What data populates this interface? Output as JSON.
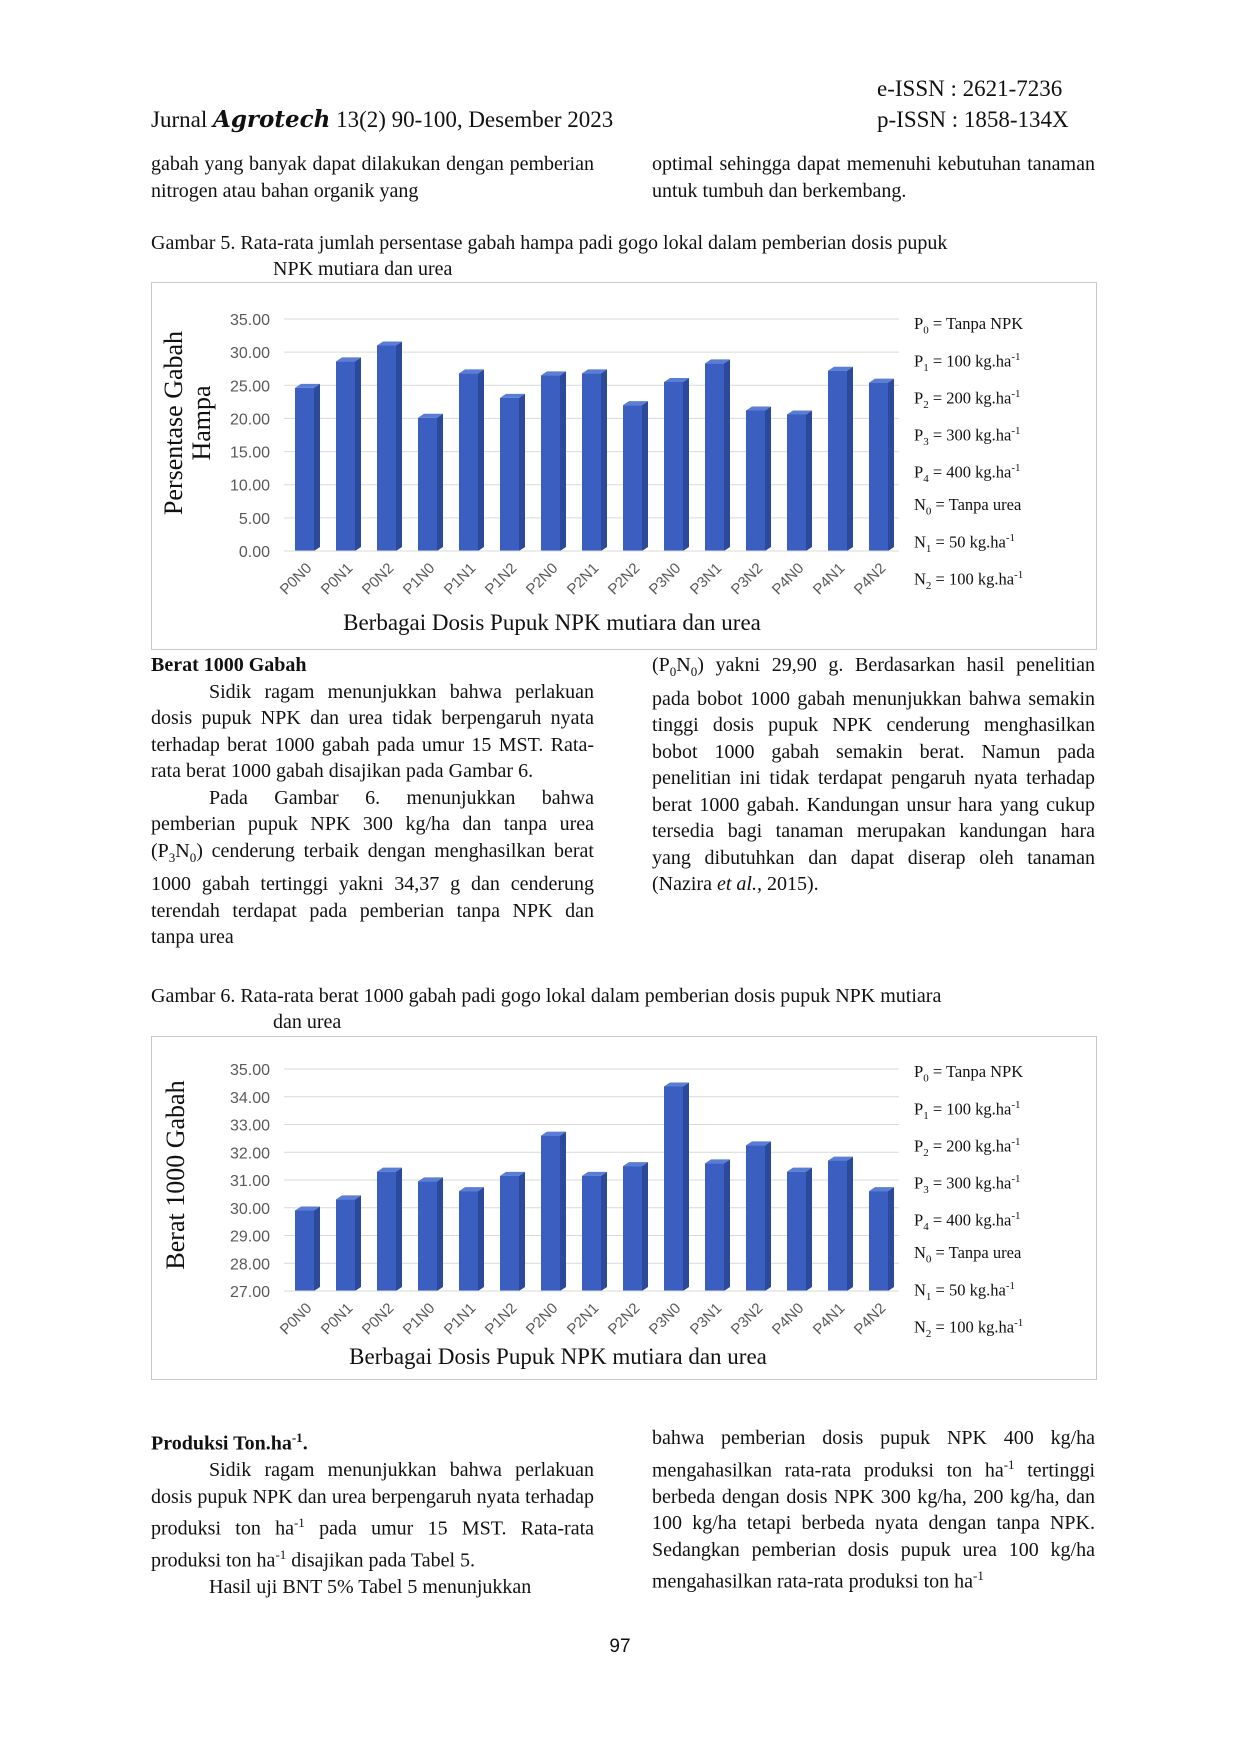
{
  "header": {
    "journal_prefix": "Jurnal ",
    "journal_brand": "Agrotech",
    "journal_suffix": " 13(2) 90-100, Desember 2023",
    "eissn": "e-ISSN : 2621-7236",
    "pissn": "p-ISSN : 1858-134X"
  },
  "top": {
    "left_text": "gabah yang banyak dapat dilakukan dengan pemberian nitrogen atau bahan organik yang",
    "right_text": "optimal sehingga dapat memenuhi kebutuhan tanaman untuk tumbuh dan berkembang."
  },
  "fig5": {
    "caption_line1": "Gambar 5.  Rata-rata jumlah persentase gabah hampa padi gogo lokal dalam pemberian dosis pupuk",
    "caption_line2": "NPK mutiara dan urea"
  },
  "fig6": {
    "caption_line1": "Gambar 6. Rata-rata berat 1000 gabah padi gogo lokal dalam pemberian dosis pupuk NPK mutiara",
    "caption_line2": "dan urea"
  },
  "legend": {
    "p0": "= Tanpa NPK",
    "p1": "= 100 kg.ha",
    "p2": "= 200 kg.ha",
    "p3": "= 300 kg.ha",
    "p4": "= 400 kg.ha",
    "n0": "= Tanpa urea",
    "n1": "= 50 kg.ha",
    "n2": "= 100 kg.ha",
    "exp": "-1"
  },
  "chart_data": [
    {
      "type": "bar",
      "ylabel": "Persentase Gabah Hampa",
      "xlabel": "Berbagai Dosis Pupuk NPK mutiara dan urea",
      "categories": [
        "P0N0",
        "P0N1",
        "P0N2",
        "P1N0",
        "P1N1",
        "P1N2",
        "P2N0",
        "P2N1",
        "P2N2",
        "P3N0",
        "P3N1",
        "P3N2",
        "P4N0",
        "P4N1",
        "P4N2"
      ],
      "values": [
        24.6,
        28.6,
        31.0,
        20.1,
        26.8,
        23.1,
        26.5,
        26.8,
        22.0,
        25.5,
        28.3,
        21.2,
        20.6,
        27.2,
        25.4
      ],
      "ylim": [
        0,
        35
      ],
      "yticks": [
        "0.00",
        "5.00",
        "10.00",
        "15.00",
        "20.00",
        "25.00",
        "30.00",
        "35.00"
      ],
      "bar_color": "#3a5fc0",
      "grid": true
    },
    {
      "type": "bar",
      "ylabel": "Berat 1000 Gabah",
      "xlabel": "Berbagai Dosis Pupuk NPK mutiara dan urea",
      "categories": [
        "P0N0",
        "P0N1",
        "P0N2",
        "P1N0",
        "P1N1",
        "P1N2",
        "P2N0",
        "P2N1",
        "P2N2",
        "P3N0",
        "P3N1",
        "P3N2",
        "P4N0",
        "P4N1",
        "P4N2"
      ],
      "values": [
        29.9,
        30.3,
        31.3,
        30.95,
        30.6,
        31.15,
        32.6,
        31.15,
        31.5,
        34.37,
        31.6,
        32.25,
        31.3,
        31.7,
        30.6
      ],
      "ylim": [
        27,
        35
      ],
      "yticks": [
        "27.00",
        "28.00",
        "29.00",
        "30.00",
        "31.00",
        "32.00",
        "33.00",
        "34.00",
        "35.00"
      ],
      "bar_color": "#3a5fc0",
      "grid": true
    }
  ],
  "section_berat": {
    "heading": "Berat 1000 Gabah",
    "l_p1": "Sidik ragam menunjukkan bahwa perlakuan dosis pupuk NPK dan urea tidak berpengaruh nyata terhadap berat 1000 gabah pada umur 15 MST. Rata-rata berat 1000 gabah disajikan pada Gambar 6.",
    "l_p2a": "Pada Gambar 6. menunjukkan bahwa pemberian pupuk NPK 300 kg/ha dan tanpa urea (P",
    "l_p2b": "N",
    "l_p2c": ") cenderung terbaik dengan menghasilkan berat 1000 gabah tertinggi yakni 34,37 g dan cenderung terendah terdapat pada pemberian tanpa NPK dan tanpa urea",
    "r_a": "(P",
    "r_b": "N",
    "r_c": ") yakni 29,90 g. Berdasarkan hasil penelitian pada bobot 1000 gabah menunjukkan bahwa semakin tinggi dosis pupuk NPK cenderung menghasilkan bobot 1000 gabah semakin berat. Namun pada penelitian ini tidak terdapat pengaruh nyata terhadap berat 1000 gabah. Kandungan unsur hara yang cukup tersedia bagi tanaman merupakan kandungan hara yang dibutuhkan dan dapat diserap oleh tanaman (Nazira ",
    "r_etal": "et al.,",
    "r_d": " 2015)."
  },
  "section_prod": {
    "heading": "Produksi Ton.ha",
    "heading_exp": "-1",
    "heading_dot": ".",
    "l_p1a": "Sidik ragam menunjukkan bahwa perlakuan dosis pupuk NPK dan urea berpengaruh nyata terhadap produksi ton ha",
    "l_p1b": " pada umur 15 MST. Rata-rata produksi ton ha",
    "l_p1c": " disajikan pada Tabel 5.",
    "l_p2": "Hasil uji BNT 5% Tabel 5 menunjukkan",
    "r_a": "bahwa pemberian dosis pupuk NPK 400 kg/ha mengahasilkan rata-rata produksi ton ha",
    "r_b": " tertinggi berbeda dengan dosis NPK 300 kg/ha, 200 kg/ha, dan 100 kg/ha tetapi berbeda nyata dengan tanpa NPK. Sedangkan pemberian dosis pupuk urea 100 kg/ha mengahasilkan rata-rata produksi ton ha",
    "exp": "-1"
  },
  "page_number": "97"
}
